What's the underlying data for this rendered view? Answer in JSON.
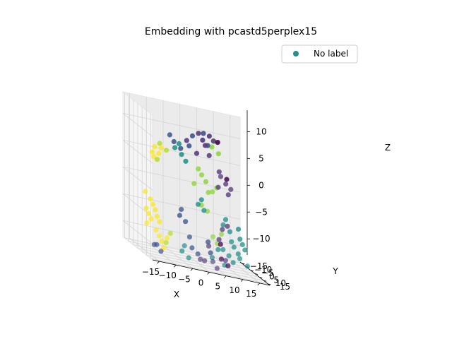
{
  "chart_data": {
    "type": "scatter",
    "dimensions": 3,
    "title": "Embedding with pcastd5perplex15",
    "xlabel": "X",
    "ylabel": "Y",
    "zlabel": "Z",
    "xlim": [
      -17,
      18
    ],
    "ylim": [
      -17,
      17
    ],
    "zlim": [
      -13,
      14
    ],
    "x_ticks": [
      -15,
      -10,
      -5,
      0,
      5,
      10,
      15
    ],
    "y_ticks": [
      -15,
      -10,
      -5,
      0,
      5,
      10,
      15
    ],
    "z_ticks": [
      -10,
      -5,
      0,
      5,
      10
    ],
    "x_tick_labels": [
      "−15",
      "−10",
      "−5",
      "0",
      "5",
      "10",
      "15"
    ],
    "y_tick_labels": [
      "−15",
      "−10",
      "−5",
      "0",
      "5",
      "10",
      "15"
    ],
    "z_tick_labels": [
      "−10",
      "−5",
      "0",
      "5",
      "10"
    ],
    "grid": true,
    "legend": {
      "position": "top-right",
      "entries": [
        {
          "label": "No label",
          "color": "#21918c"
        }
      ]
    },
    "colormap": [
      "#440154",
      "#3b528b",
      "#21918c",
      "#5ec962",
      "#fde725"
    ],
    "series": [
      {
        "color_group": "yellow",
        "color": "#fde725",
        "points": [
          [
            -14,
            5,
            6
          ],
          [
            -13,
            4,
            7
          ],
          [
            -12,
            5,
            6
          ],
          [
            -11,
            4,
            7
          ],
          [
            -13,
            3,
            5
          ],
          [
            -15,
            2,
            -5
          ],
          [
            -14,
            1,
            -6
          ],
          [
            -13,
            2,
            -4
          ],
          [
            -12,
            1,
            -5
          ],
          [
            -14,
            3,
            -3
          ],
          [
            -13,
            0,
            -7
          ],
          [
            -15,
            1,
            -2
          ],
          [
            -12,
            3,
            -6
          ],
          [
            -14,
            -1,
            -8
          ],
          [
            -11,
            2,
            -7
          ],
          [
            -10,
            -2,
            -10
          ],
          [
            -9,
            -3,
            -11
          ],
          [
            -8,
            -1,
            -10
          ],
          [
            -11,
            -2,
            -9
          ],
          [
            -9,
            -1,
            -12
          ]
        ]
      },
      {
        "color_group": "yellow-green",
        "color": "#b5de2b",
        "points": [
          [
            -12,
            6,
            8
          ],
          [
            -10,
            6,
            7
          ],
          [
            -13,
            7,
            5
          ],
          [
            -8,
            -2,
            -11
          ],
          [
            -7,
            -1,
            -9
          ]
        ]
      },
      {
        "color_group": "light-green",
        "color": "#90d743",
        "points": [
          [
            2,
            12,
            10
          ],
          [
            3,
            11,
            11
          ],
          [
            4,
            12,
            9
          ],
          [
            0,
            8,
            4
          ],
          [
            1,
            9,
            3
          ],
          [
            -1,
            8,
            5
          ],
          [
            -2,
            7,
            2
          ],
          [
            2,
            8,
            1
          ],
          [
            5,
            6,
            2
          ],
          [
            4,
            5,
            1
          ],
          [
            1,
            4,
            -2
          ],
          [
            3,
            3,
            -3
          ],
          [
            6,
            -2,
            -8
          ],
          [
            7,
            -1,
            -9
          ],
          [
            8,
            0,
            -7
          ]
        ]
      },
      {
        "color_group": "teal",
        "color": "#21918c",
        "points": [
          [
            -8,
            8,
            8
          ],
          [
            -7,
            9,
            9
          ],
          [
            -6,
            8,
            7
          ],
          [
            -5,
            9,
            6
          ],
          [
            0,
            4,
            -2
          ],
          [
            1,
            4,
            -1
          ],
          [
            2,
            3,
            -3
          ],
          [
            8,
            2,
            -5
          ],
          [
            9,
            1,
            -4
          ],
          [
            10,
            2,
            -6
          ],
          [
            11,
            0,
            -8
          ],
          [
            12,
            -1,
            -9
          ],
          [
            13,
            0,
            -10
          ],
          [
            11,
            -3,
            -11
          ],
          [
            12,
            -2,
            -12
          ],
          [
            14,
            -2,
            -11
          ],
          [
            15,
            0,
            -9
          ],
          [
            10,
            -4,
            -13
          ],
          [
            16,
            -1,
            -12
          ],
          [
            -3,
            -3,
            -12
          ],
          [
            -2,
            -4,
            -11
          ],
          [
            -1,
            -3,
            -13
          ],
          [
            9,
            -2,
            -10
          ],
          [
            6,
            -3,
            -12
          ],
          [
            13,
            2,
            -7
          ],
          [
            12,
            4,
            -5
          ],
          [
            14,
            1,
            -8
          ],
          [
            7,
            0,
            -10
          ]
        ]
      },
      {
        "color_group": "blue",
        "color": "#3b528b",
        "points": [
          [
            -8,
            7,
            9
          ],
          [
            -9,
            6,
            10
          ],
          [
            -6,
            7,
            8
          ],
          [
            -4,
            9,
            9
          ],
          [
            -3,
            9,
            11
          ],
          [
            0,
            10,
            12
          ],
          [
            1,
            11,
            10
          ],
          [
            -10,
            -5,
            -12
          ],
          [
            -9,
            -4,
            -13
          ],
          [
            -11,
            -4,
            -12
          ],
          [
            -1,
            -2,
            -9
          ],
          [
            0,
            -3,
            -11
          ],
          [
            2,
            -4,
            -12
          ],
          [
            -4,
            0,
            -4
          ],
          [
            -3,
            1,
            -6
          ],
          [
            -5,
            2,
            -5
          ],
          [
            4,
            0,
            -9
          ],
          [
            5,
            -1,
            -11
          ]
        ]
      },
      {
        "color_group": "purple",
        "color": "#5c3f80",
        "points": [
          [
            -2,
            12,
            12
          ],
          [
            -1,
            13,
            11
          ],
          [
            0,
            12,
            10
          ],
          [
            1,
            13,
            12
          ],
          [
            3,
            10,
            11
          ],
          [
            2,
            9,
            8
          ],
          [
            -2,
            10,
            8
          ],
          [
            -5,
            10,
            10
          ],
          [
            6,
            4,
            2
          ],
          [
            7,
            3,
            4
          ],
          [
            8,
            5,
            3
          ],
          [
            9,
            4,
            1
          ],
          [
            10,
            3,
            2
          ],
          [
            6,
            5,
            5
          ],
          [
            3,
            -5,
            -13
          ],
          [
            4,
            -4,
            -13
          ],
          [
            5,
            -3,
            -10
          ],
          [
            7,
            -6,
            -13
          ],
          [
            8,
            -5,
            -14
          ],
          [
            10,
            -3,
            -12
          ],
          [
            7,
            1,
            -8
          ],
          [
            8,
            1,
            -6
          ],
          [
            9,
            3,
            -5
          ]
        ]
      },
      {
        "color_group": "dark-purple",
        "color": "#440154",
        "points": [
          [
            4,
            11,
            11
          ],
          [
            8,
            6,
            4
          ],
          [
            9,
            -4,
            -12
          ],
          [
            11,
            -4,
            -13
          ],
          [
            8,
            -1,
            -9
          ]
        ]
      }
    ]
  }
}
